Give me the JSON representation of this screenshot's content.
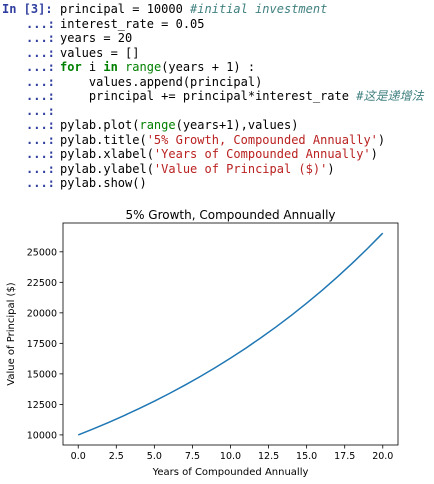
{
  "cell": {
    "prompt_in": "In [3]:",
    "prompt_cont": "...:",
    "lines": [
      {
        "t": [
          [
            "",
            "principal = 10000 "
          ],
          [
            "cm",
            "#initial investment"
          ]
        ]
      },
      {
        "t": [
          [
            "",
            "interest_rate = 0.05"
          ]
        ]
      },
      {
        "t": [
          [
            "",
            "years = 20"
          ]
        ]
      },
      {
        "t": [
          [
            "",
            "values = []"
          ]
        ]
      },
      {
        "t": [
          [
            "kw",
            "for"
          ],
          [
            "",
            " i "
          ],
          [
            "kw",
            "in"
          ],
          [
            "",
            " "
          ],
          [
            "bi",
            "range"
          ],
          [
            "",
            "(years + 1) :"
          ]
        ]
      },
      {
        "t": [
          [
            "",
            "    values.append(principal)"
          ]
        ]
      },
      {
        "t": [
          [
            "",
            "    principal += principal*interest_rate "
          ],
          [
            "cm",
            "#这是递增法"
          ]
        ]
      },
      {
        "t": [
          [
            "",
            ""
          ]
        ]
      },
      {
        "t": [
          [
            "",
            "pylab.plot("
          ],
          [
            "bi",
            "range"
          ],
          [
            "",
            "(years+1),values)"
          ]
        ]
      },
      {
        "t": [
          [
            "",
            "pylab.title("
          ],
          [
            "str",
            "'5% Growth, Compounded Annually'"
          ],
          [
            "",
            ")"
          ]
        ]
      },
      {
        "t": [
          [
            "",
            "pylab.xlabel("
          ],
          [
            "str",
            "'Years of Compounded Annually'"
          ],
          [
            "",
            ")"
          ]
        ]
      },
      {
        "t": [
          [
            "",
            "pylab.ylabel("
          ],
          [
            "str",
            "'Value of Principal ($)'"
          ],
          [
            "",
            ")"
          ]
        ]
      },
      {
        "t": [
          [
            "",
            "pylab.show()"
          ]
        ]
      }
    ]
  },
  "chart_data": {
    "type": "line",
    "title": "5% Growth, Compounded Annually",
    "xlabel": "Years of Compounded Annually",
    "ylabel": "Value of Principal ($)",
    "x": [
      0,
      1,
      2,
      3,
      4,
      5,
      6,
      7,
      8,
      9,
      10,
      11,
      12,
      13,
      14,
      15,
      16,
      17,
      18,
      19,
      20
    ],
    "series": [
      {
        "values": [
          10000,
          10500,
          11025,
          11576.25,
          12155.06,
          12762.82,
          13400.96,
          14071.0,
          14774.55,
          15513.28,
          16288.95,
          17103.39,
          17958.56,
          18856.49,
          19799.32,
          20789.28,
          21828.75,
          22920.18,
          24066.19,
          25269.5,
          26532.98
        ],
        "color": "#1f77b4"
      }
    ],
    "xticks": [
      "0.0",
      "2.5",
      "5.0",
      "7.5",
      "10.0",
      "12.5",
      "15.0",
      "17.5",
      "20.0"
    ],
    "xtick_values": [
      0,
      2.5,
      5,
      7.5,
      10,
      12.5,
      15,
      17.5,
      20
    ],
    "yticks": [
      "10000",
      "12500",
      "15000",
      "17500",
      "20000",
      "22500",
      "25000"
    ],
    "ytick_values": [
      10000,
      12500,
      15000,
      17500,
      20000,
      22500,
      25000
    ],
    "xlim": [
      -1,
      21
    ],
    "ylim": [
      9173,
      27360
    ],
    "grid": false
  }
}
